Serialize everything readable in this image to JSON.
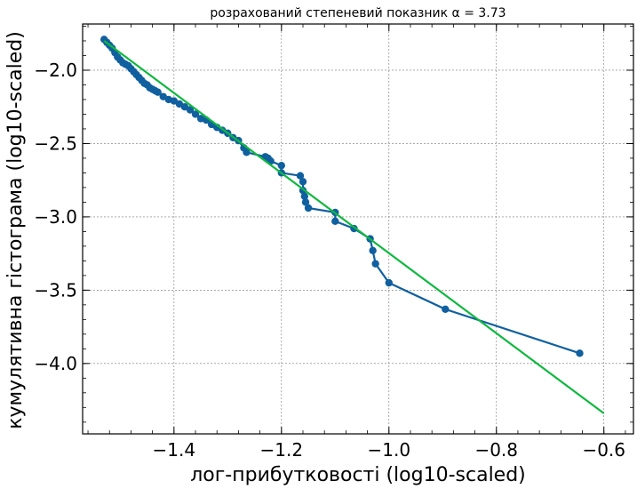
{
  "chart_data": {
    "type": "line",
    "title": "розрахований степеневий показник α = 3.73",
    "xlabel": "лог-прибутковості (log10-scaled)",
    "ylabel": "кумулятивна гістограма (log10-scaled)",
    "xlim": [
      -1.57,
      -0.545
    ],
    "ylim": [
      -4.48,
      -1.685
    ],
    "xticks": [
      -1.4,
      -1.2,
      -1.0,
      -0.8,
      -0.6
    ],
    "xtick_labels": [
      "−1.4",
      "−1.2",
      "−1.0",
      "−0.8",
      "−0.6"
    ],
    "yticks": [
      -2.0,
      -2.5,
      -3.0,
      -3.5,
      -4.0
    ],
    "ytick_labels": [
      "−2.0",
      "−2.5",
      "−3.0",
      "−3.5",
      "−4.0"
    ],
    "grid": true,
    "series": [
      {
        "color": "#1060a0",
        "marker": "circle",
        "x": [
          -1.53,
          -1.525,
          -1.52,
          -1.515,
          -1.51,
          -1.505,
          -1.5,
          -1.495,
          -1.49,
          -1.485,
          -1.48,
          -1.475,
          -1.47,
          -1.465,
          -1.46,
          -1.455,
          -1.45,
          -1.445,
          -1.44,
          -1.435,
          -1.43,
          -1.42,
          -1.41,
          -1.4,
          -1.39,
          -1.38,
          -1.37,
          -1.36,
          -1.35,
          -1.34,
          -1.33,
          -1.32,
          -1.31,
          -1.3,
          -1.29,
          -1.28,
          -1.27,
          -1.265,
          -1.23,
          -1.225,
          -1.22,
          -1.2,
          -1.2,
          -1.165,
          -1.16,
          -1.16,
          -1.157,
          -1.155,
          -1.15,
          -1.1,
          -1.1,
          -1.065,
          -1.035,
          -1.03,
          -1.025,
          -1.0,
          -0.895,
          -0.645
        ],
        "y": [
          -1.79,
          -1.81,
          -1.83,
          -1.85,
          -1.88,
          -1.91,
          -1.93,
          -1.95,
          -1.96,
          -1.97,
          -1.99,
          -2.01,
          -2.03,
          -2.05,
          -2.07,
          -2.09,
          -2.1,
          -2.12,
          -2.13,
          -2.14,
          -2.15,
          -2.18,
          -2.2,
          -2.21,
          -2.23,
          -2.25,
          -2.27,
          -2.3,
          -2.33,
          -2.34,
          -2.37,
          -2.39,
          -2.41,
          -2.43,
          -2.46,
          -2.48,
          -2.53,
          -2.56,
          -2.59,
          -2.6,
          -2.62,
          -2.65,
          -2.7,
          -2.72,
          -2.76,
          -2.82,
          -2.86,
          -2.9,
          -2.94,
          -2.97,
          -3.03,
          -3.08,
          -3.15,
          -3.23,
          -3.32,
          -3.45,
          -3.63,
          -3.93
        ]
      },
      {
        "color": "#10b840",
        "marker": "none",
        "x": [
          -1.53,
          -0.6
        ],
        "y": [
          -1.8,
          -4.34
        ]
      }
    ]
  }
}
